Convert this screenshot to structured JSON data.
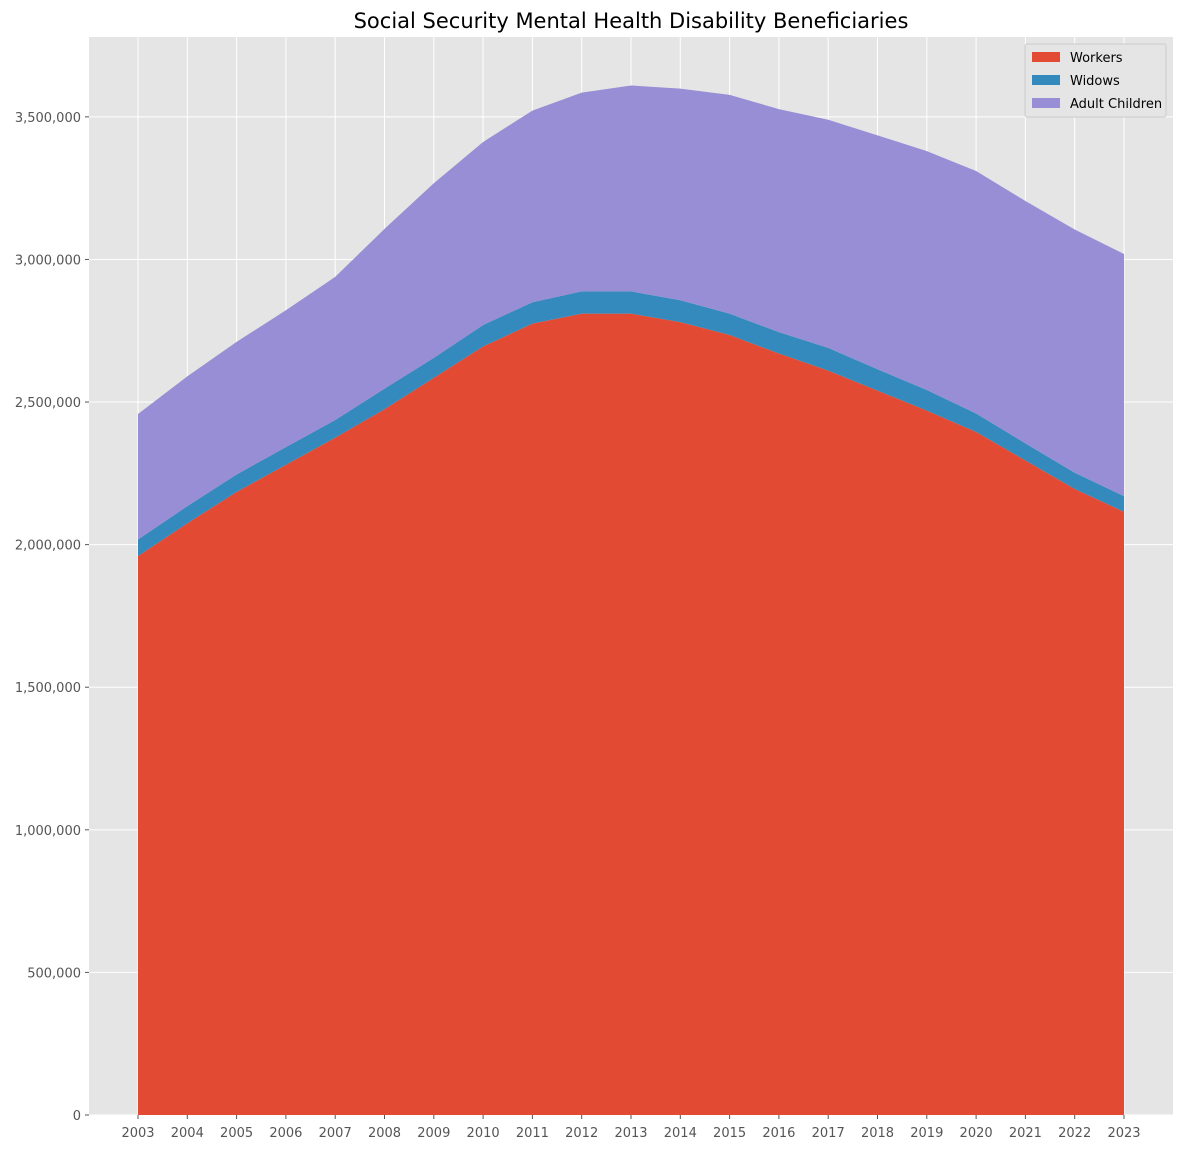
{
  "chart_data": {
    "type": "area",
    "stacked": true,
    "title": "Social Security Mental Health Disability Beneficiaries",
    "xlabel": "",
    "ylabel": "",
    "x": [
      "2003",
      "2004",
      "2005",
      "2006",
      "2007",
      "2008",
      "2009",
      "2010",
      "2011",
      "2012",
      "2013",
      "2014",
      "2015",
      "2016",
      "2017",
      "2018",
      "2019",
      "2020",
      "2021",
      "2022",
      "2023"
    ],
    "ylim": [
      0,
      3780000
    ],
    "yticks": [
      0,
      500000,
      1000000,
      1500000,
      2000000,
      2500000,
      3000000,
      3500000
    ],
    "ytick_labels": [
      "0",
      "500,000",
      "1,000,000",
      "1,500,000",
      "2,000,000",
      "2,500,000",
      "3,000,000",
      "3,500,000"
    ],
    "grid": true,
    "legend_position": "top-right",
    "series": [
      {
        "name": "Workers",
        "color": "#E24A33",
        "values": [
          1960000,
          2075000,
          2185000,
          2280000,
          2375000,
          2475000,
          2585000,
          2695000,
          2775000,
          2810000,
          2810000,
          2780000,
          2735000,
          2670000,
          2610000,
          2540000,
          2470000,
          2395000,
          2295000,
          2195000,
          2115000
        ]
      },
      {
        "name": "Widows",
        "color": "#348ABD",
        "values": [
          58000,
          60000,
          61000,
          62000,
          62000,
          72000,
          70000,
          75000,
          75000,
          78000,
          78000,
          77000,
          75000,
          75000,
          80000,
          75000,
          72000,
          65000,
          60000,
          57000,
          55000
        ]
      },
      {
        "name": "Adult Children",
        "color": "#988ED5",
        "values": [
          440000,
          455000,
          465000,
          480000,
          502000,
          560000,
          612000,
          642000,
          672000,
          697000,
          722000,
          742000,
          767000,
          782000,
          800000,
          820000,
          838000,
          850000,
          850000,
          853000,
          849000
        ]
      }
    ]
  }
}
